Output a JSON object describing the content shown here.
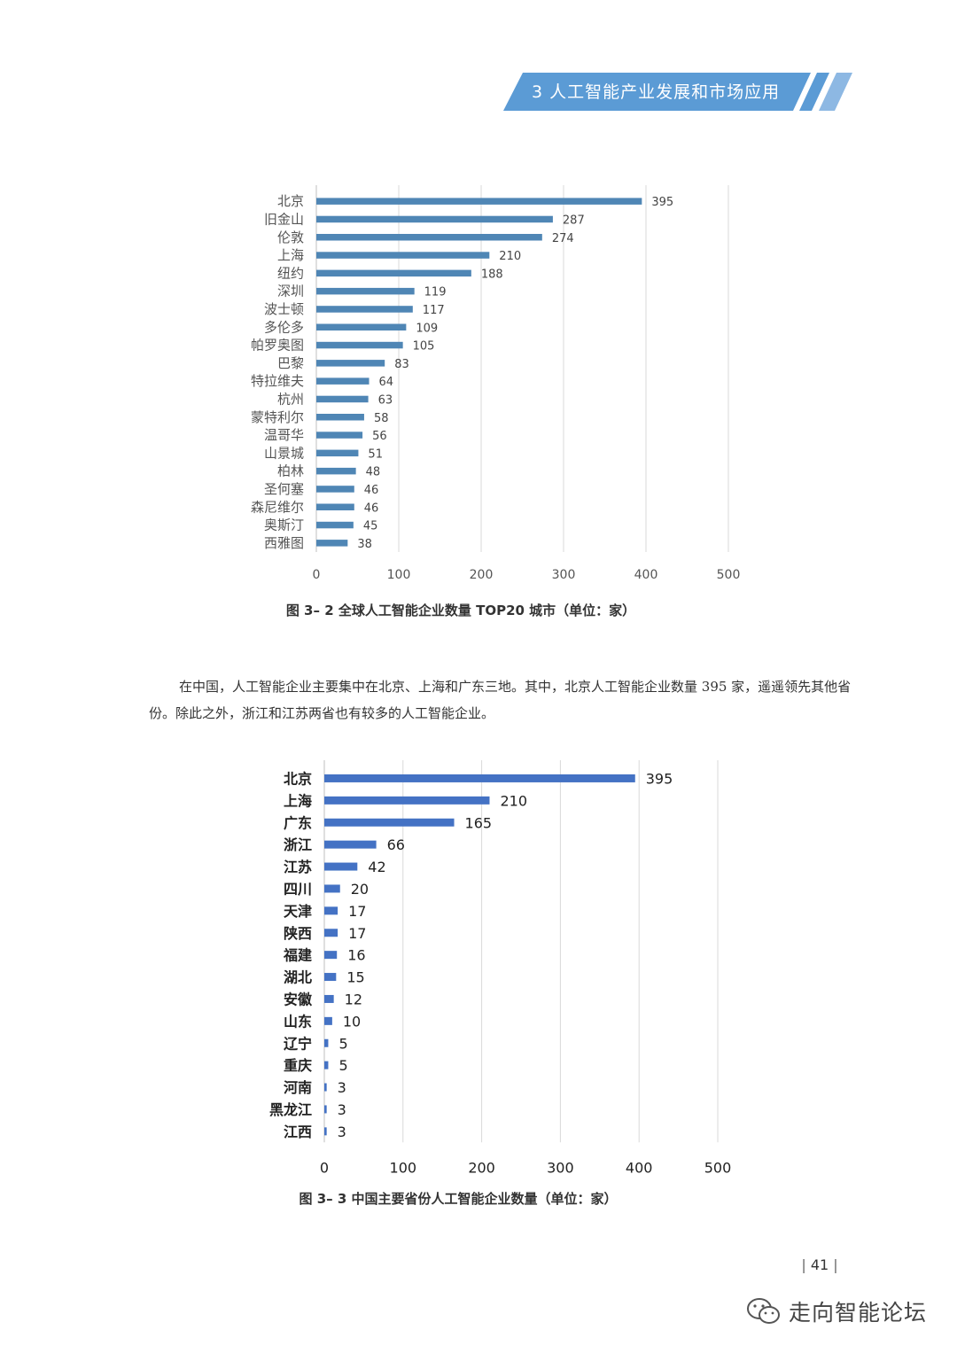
{
  "header": {
    "title": "3 人工智能产业发展和市场应用"
  },
  "figure1": {
    "caption": "图 3– 2  全球人工智能企业数量 TOP20 城市（单位：家）"
  },
  "paragraph": {
    "text": "在中国，人工智能企业主要集中在北京、上海和广东三地。其中，北京人工智能企业数量 395 家，遥遥领先其他省份。除此之外，浙江和江苏两省也有较多的人工智能企业。"
  },
  "figure2": {
    "caption": "图 3– 3  中国主要省份人工智能企业数量（单位：家）"
  },
  "page_number": "41",
  "watermark": {
    "text": "走向智能论坛",
    "icon": "wechat-icon"
  },
  "colors": {
    "banner": "#5b9bd5",
    "bar1": "#4f86b5",
    "bar2": "#4472c4",
    "grid": "#d9d9d9"
  },
  "chart_data": [
    {
      "type": "bar",
      "orientation": "horizontal",
      "categories": [
        "北京",
        "旧金山",
        "伦敦",
        "上海",
        "纽约",
        "深圳",
        "波士顿",
        "多伦多",
        "帕罗奥图",
        "巴黎",
        "特拉维夫",
        "杭州",
        "蒙特利尔",
        "温哥华",
        "山景城",
        "柏林",
        "圣何塞",
        "森尼维尔",
        "奥斯汀",
        "西雅图"
      ],
      "values": [
        395,
        287,
        274,
        210,
        188,
        119,
        117,
        109,
        105,
        83,
        64,
        63,
        58,
        56,
        51,
        48,
        46,
        46,
        45,
        38
      ],
      "xlim": [
        0,
        500
      ],
      "xticks": [
        0,
        100,
        200,
        300,
        400,
        500
      ],
      "grid": true,
      "data_labels": true
    },
    {
      "type": "bar",
      "orientation": "horizontal",
      "categories": [
        "北京",
        "上海",
        "广东",
        "浙江",
        "江苏",
        "四川",
        "天津",
        "陕西",
        "福建",
        "湖北",
        "安徽",
        "山东",
        "辽宁",
        "重庆",
        "河南",
        "黑龙江",
        "江西"
      ],
      "values": [
        395,
        210,
        165,
        66,
        42,
        20,
        17,
        17,
        16,
        15,
        12,
        10,
        5,
        5,
        3,
        3,
        3
      ],
      "xlim": [
        0,
        500
      ],
      "xticks": [
        0,
        100,
        200,
        300,
        400,
        500
      ],
      "grid": true,
      "data_labels": true
    }
  ]
}
